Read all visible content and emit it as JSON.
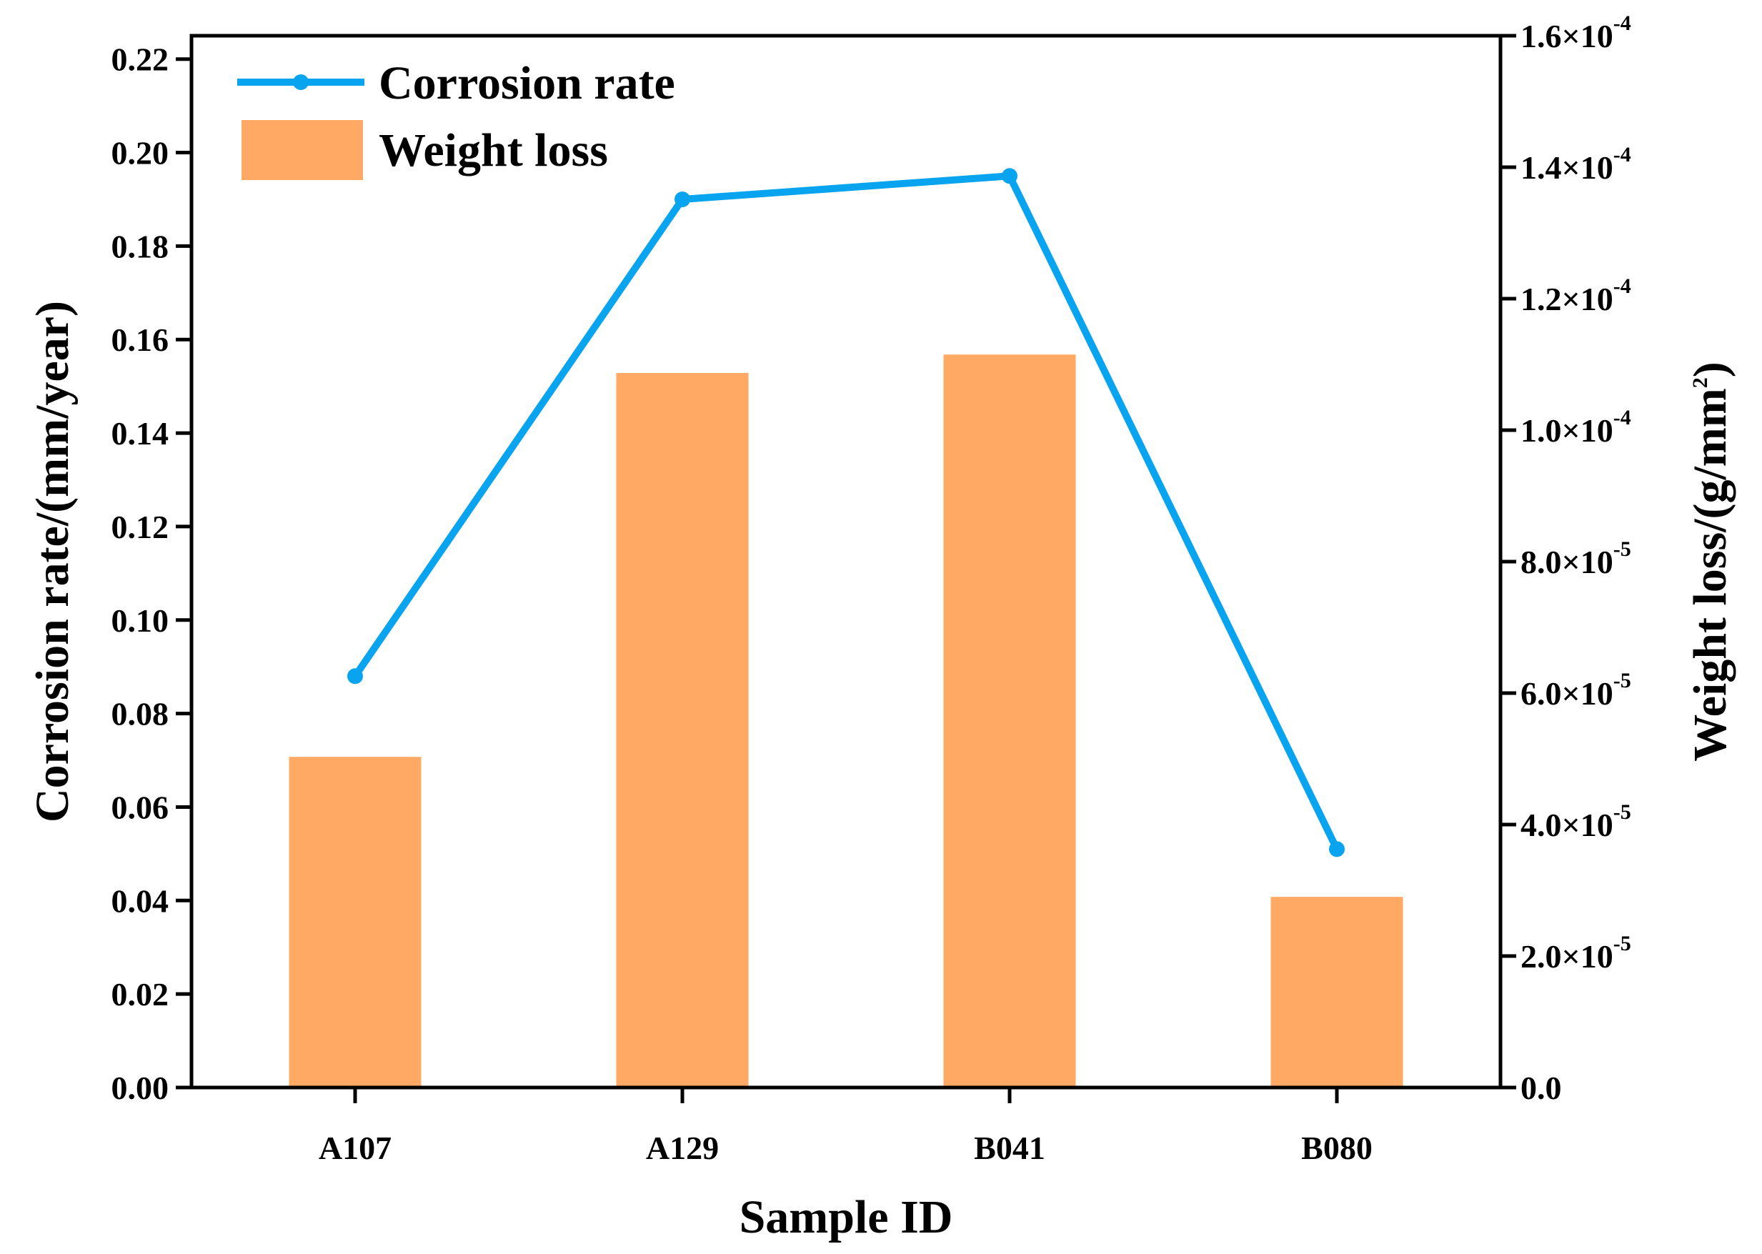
{
  "chart_data": {
    "type": "bar+line",
    "categories": [
      "A107",
      "A129",
      "B041",
      "B080"
    ],
    "series": [
      {
        "name": "Weight loss",
        "type": "bar",
        "axis": "right",
        "color": "#FFA965",
        "values": [
          5.03e-05,
          0.0001087,
          0.0001115,
          2.9e-05
        ]
      },
      {
        "name": "Corrosion rate",
        "type": "line",
        "axis": "left",
        "color": "#09A4EF",
        "values": [
          0.088,
          0.19,
          0.195,
          0.051
        ]
      }
    ],
    "xlabel": "Sample ID",
    "ylabel": "Corrosion rate/(mm/year)",
    "y2label": "Weight loss/(g/mm",
    "y2label_sup": "2",
    "y2label_end": ")",
    "ylim": [
      0,
      0.225
    ],
    "y2lim": [
      0,
      0.00016
    ],
    "yticks": [
      {
        "value": 0.0,
        "label": "0.00"
      },
      {
        "value": 0.02,
        "label": "0.02"
      },
      {
        "value": 0.04,
        "label": "0.04"
      },
      {
        "value": 0.06,
        "label": "0.06"
      },
      {
        "value": 0.08,
        "label": "0.08"
      },
      {
        "value": 0.1,
        "label": "0.10"
      },
      {
        "value": 0.12,
        "label": "0.12"
      },
      {
        "value": 0.14,
        "label": "0.14"
      },
      {
        "value": 0.16,
        "label": "0.16"
      },
      {
        "value": 0.18,
        "label": "0.18"
      },
      {
        "value": 0.2,
        "label": "0.20"
      },
      {
        "value": 0.22,
        "label": "0.22"
      }
    ],
    "y2ticks": [
      {
        "value": 0,
        "base": "0.0",
        "exp": ""
      },
      {
        "value": 2e-05,
        "base": "2.0×10",
        "exp": "-5"
      },
      {
        "value": 4e-05,
        "base": "4.0×10",
        "exp": "-5"
      },
      {
        "value": 6e-05,
        "base": "6.0×10",
        "exp": "-5"
      },
      {
        "value": 8e-05,
        "base": "8.0×10",
        "exp": "-5"
      },
      {
        "value": 0.0001,
        "base": "1.0×10",
        "exp": "-4"
      },
      {
        "value": 0.00012,
        "base": "1.2×10",
        "exp": "-4"
      },
      {
        "value": 0.00014,
        "base": "1.4×10",
        "exp": "-4"
      },
      {
        "value": 0.00016,
        "base": "1.6×10",
        "exp": "-4"
      }
    ],
    "legend": {
      "position": "top-left",
      "entries": [
        "Corrosion rate",
        "Weight loss"
      ]
    },
    "grid": false
  }
}
